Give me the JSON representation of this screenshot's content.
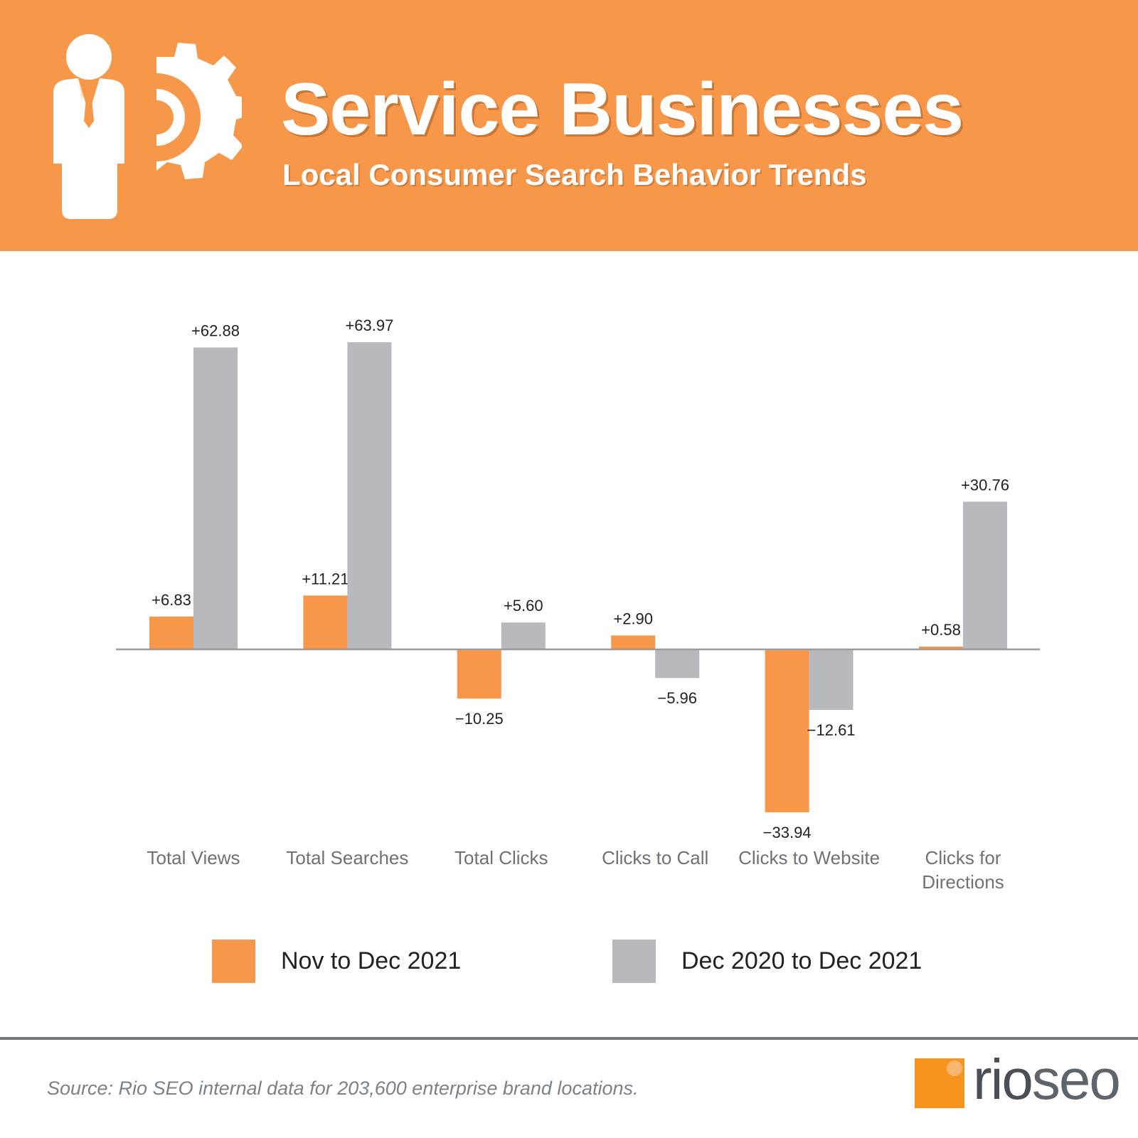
{
  "header": {
    "title": "Service Businesses",
    "subtitle": "Local Consumer Search Behavior Trends",
    "icon": "businessman-gear-icon"
  },
  "colors": {
    "header_bg": "#f7974a",
    "series_orange": "#f7974a",
    "series_gray": "#b8b9bd",
    "baseline": "#9a9ea3",
    "text": "#222222",
    "category_label": "#6e7278"
  },
  "chart_data": {
    "type": "bar",
    "title": "Service Businesses",
    "subtitle": "Local Consumer Search Behavior Trends",
    "categories": [
      "Total Views",
      "Total Searches",
      "Total Clicks",
      "Clicks to Call",
      "Clicks to Website",
      "Clicks for Directions"
    ],
    "series": [
      {
        "name": "Nov to Dec 2021",
        "values": [
          6.83,
          11.21,
          -10.25,
          2.9,
          -33.94,
          0.58
        ],
        "labels": [
          "+6.83",
          "+11.21",
          "−10.25",
          "+2.90",
          "−33.94",
          "+0.58"
        ]
      },
      {
        "name": "Dec 2020 to Dec 2021",
        "values": [
          62.88,
          63.97,
          5.6,
          -5.96,
          -12.61,
          30.76
        ],
        "labels": [
          "+62.88",
          "+63.97",
          "+5.60",
          "−5.96",
          "−12.61",
          "+30.76"
        ]
      }
    ],
    "xlabel": "",
    "ylabel": "",
    "ylim": [
      -40,
      70
    ],
    "grid": false,
    "legend": "bottom"
  },
  "legend": {
    "items": [
      {
        "label": "Nov to Dec 2021"
      },
      {
        "label": "Dec 2020 to Dec 2021"
      }
    ]
  },
  "footer": {
    "source": "Source: Rio SEO internal data for 203,600 enterprise brand locations.",
    "logo_rio": "rio",
    "logo_seo": "seo"
  }
}
